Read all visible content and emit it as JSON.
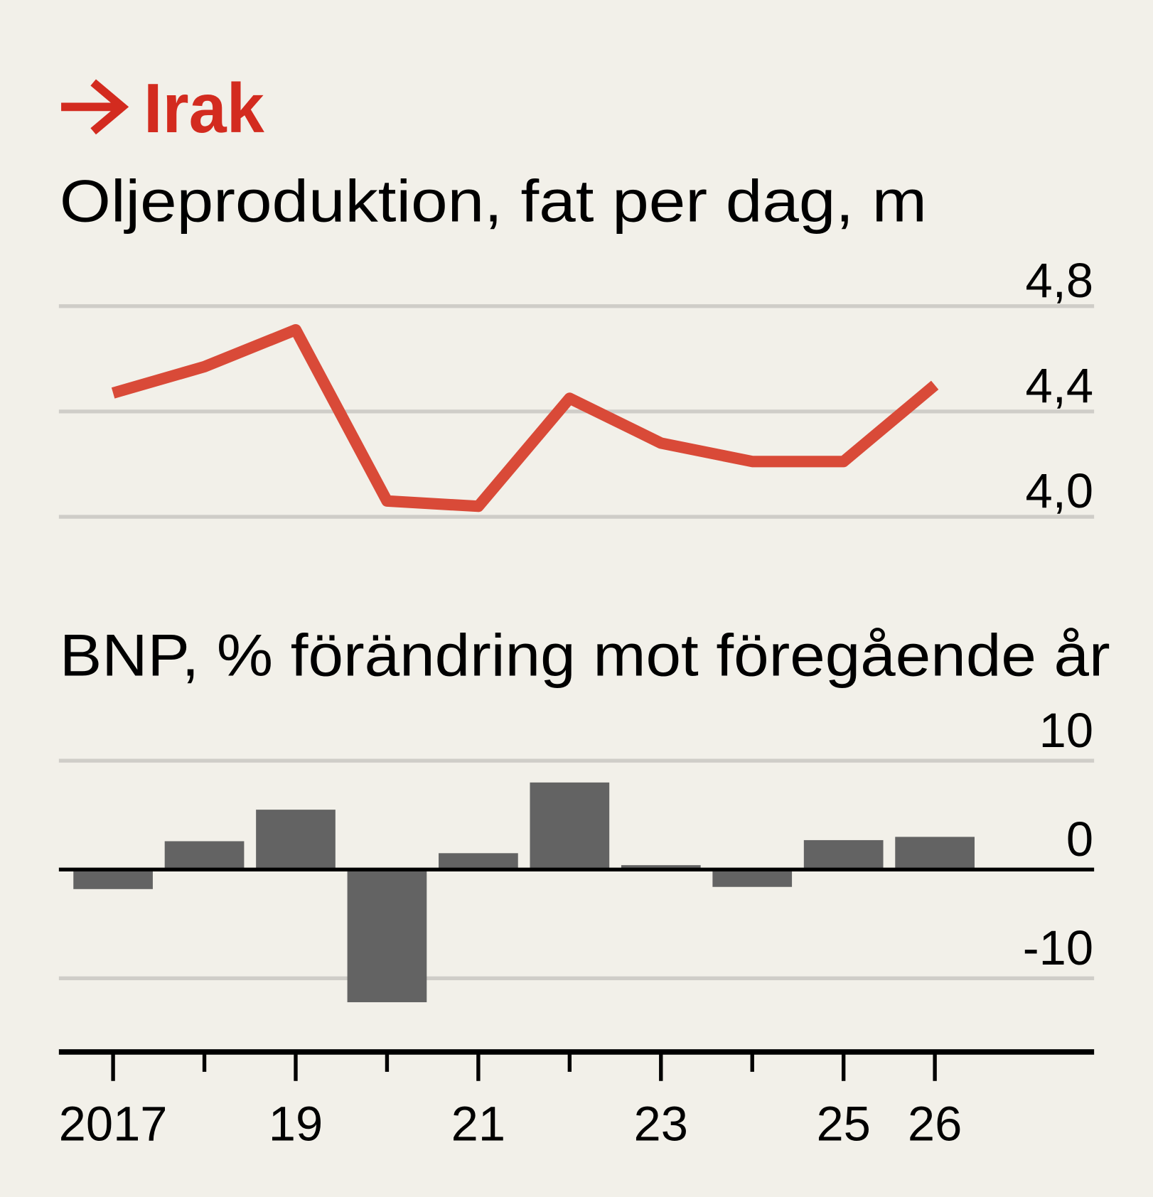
{
  "header": {
    "arrow_icon": "right-arrow-icon",
    "country": "Irak"
  },
  "colors": {
    "accent": "#d32b1f",
    "line": "#d94a38",
    "bar": "#636363",
    "background": "#f2f0e9",
    "grid": "#cfcdc8"
  },
  "chart_data": [
    {
      "type": "line",
      "title": "Oljeproduktion, fat per dag, m",
      "x": [
        2017,
        2018,
        2019,
        2020,
        2021,
        2022,
        2023,
        2024,
        2025,
        2026
      ],
      "values": [
        4.47,
        4.57,
        4.71,
        4.06,
        4.04,
        4.45,
        4.28,
        4.21,
        4.21,
        4.5
      ],
      "ylim": [
        4.0,
        4.8
      ],
      "yticks": [
        4.8,
        4.4,
        4.0
      ],
      "ytick_labels": [
        "4,8",
        "4,4",
        "4,0"
      ],
      "grid": true
    },
    {
      "type": "bar",
      "title": "BNP, % förändring mot föregående år",
      "x": [
        2017,
        2018,
        2019,
        2020,
        2021,
        2022,
        2023,
        2024,
        2025,
        2026
      ],
      "values": [
        -1.8,
        2.6,
        5.5,
        -12.2,
        1.5,
        8.0,
        0.4,
        -1.6,
        2.7,
        3.0
      ],
      "ylim": [
        -16.7,
        10
      ],
      "yticks": [
        10,
        0,
        -10
      ],
      "ytick_labels": [
        "10",
        "0",
        "-10"
      ],
      "xtick_labels": [
        {
          "year": 2017,
          "label": "2017"
        },
        {
          "year": 2019,
          "label": "19"
        },
        {
          "year": 2021,
          "label": "21"
        },
        {
          "year": 2023,
          "label": "23"
        },
        {
          "year": 2025,
          "label": "25"
        },
        {
          "year": 2026,
          "label": "26"
        }
      ],
      "grid": true
    }
  ]
}
